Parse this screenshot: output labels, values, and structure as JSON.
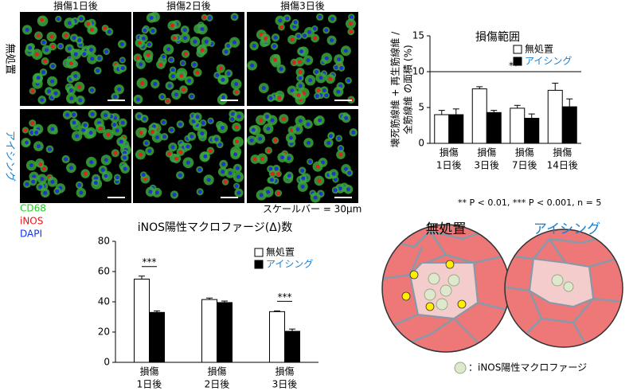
{
  "panel": {
    "columns": [
      "損傷1日後",
      "損傷2日後",
      "損傷3日後"
    ],
    "rows": [
      "無処置",
      "アイシング"
    ],
    "stains": [
      {
        "name": "CD68",
        "color": "#22cc22"
      },
      {
        "name": "iNOS",
        "color": "#ee1111"
      },
      {
        "name": "DAPI",
        "color": "#1133ee"
      }
    ],
    "scale_bar": "スケールバー = 30μm"
  },
  "chart_data": [
    {
      "type": "bar",
      "title": "iNOS陽性マクロファージ(Δ)数",
      "categories": [
        [
          "損傷",
          "1日後"
        ],
        [
          "損傷",
          "2日後"
        ],
        [
          "損傷",
          "3日後"
        ]
      ],
      "series": [
        {
          "name": "無処置",
          "color": "#ffffff",
          "label_color": "#000000",
          "values": [
            55,
            41.5,
            33.5
          ],
          "errors": [
            2,
            1,
            0.5
          ]
        },
        {
          "name": "アイシング",
          "color": "#000000",
          "label_color": "#1a7fd0",
          "values": [
            33,
            39.5,
            20.5
          ],
          "errors": [
            1,
            1,
            1.5
          ]
        }
      ],
      "annotations": [
        "***",
        null,
        "***"
      ],
      "ylim": [
        0,
        80
      ],
      "yticks": [
        0,
        20,
        40,
        60,
        80
      ]
    },
    {
      "type": "bar",
      "title": "損傷範囲",
      "y_label": [
        "壊死筋線維 + 再生筋線維 /",
        "全筋線維 の面積 (%)"
      ],
      "categories": [
        [
          "損傷",
          "1日後"
        ],
        [
          "損傷",
          "3日後"
        ],
        [
          "損傷",
          "7日後"
        ],
        [
          "損傷",
          "14日後"
        ]
      ],
      "series": [
        {
          "name": "無処置",
          "color": "#ffffff",
          "label_color": "#000000",
          "values": [
            4.0,
            7.6,
            4.9,
            7.4
          ],
          "errors": [
            0.6,
            0.3,
            0.4,
            1.0
          ]
        },
        {
          "name": "アイシング",
          "color": "#000000",
          "label_color": "#1a7fd0",
          "values": [
            4.0,
            4.3,
            3.5,
            5.1
          ],
          "errors": [
            0.8,
            0.3,
            0.6,
            1.1
          ]
        }
      ],
      "significance_line": {
        "value": 10,
        "label": "**"
      },
      "note": "** P < 0.01, *** P < 0.001, n = 5",
      "ylim": [
        0,
        15
      ],
      "yticks": [
        0,
        5,
        10,
        15
      ]
    }
  ],
  "illustration": {
    "left": "無処置",
    "right": "アイシング",
    "legend": "：iNOS陽性マクロファージ"
  }
}
